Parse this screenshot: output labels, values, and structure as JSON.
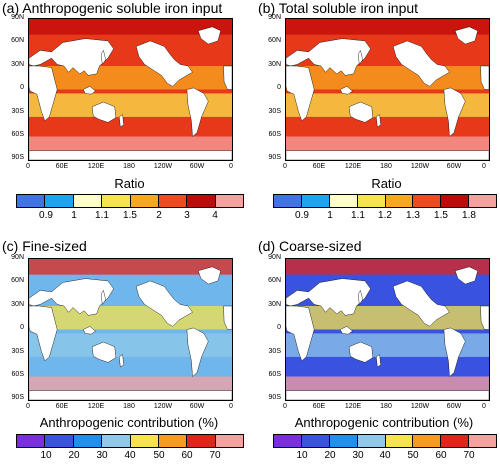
{
  "panels": [
    {
      "title": "(a) Anthropogenic soluble iron input",
      "colorbar_title": "Ratio",
      "colorbar_labels": [
        "0.9",
        "1",
        "1.1",
        "1.5",
        "2",
        "3",
        "4"
      ],
      "colors": [
        "#3f73e6",
        "#1aa6f2",
        "#ffffc8",
        "#f7e34a",
        "#f7a81e",
        "#ee4a1e",
        "#bf0a0a",
        "#f7a0a0"
      ],
      "ocean_base": "#e7391a"
    },
    {
      "title": "(b) Total soluble iron input",
      "colorbar_title": "Ratio",
      "colorbar_labels": [
        "0.9",
        "1",
        "1.1",
        "1.2",
        "1.3",
        "1.5",
        "1.8"
      ],
      "colors": [
        "#3f73e6",
        "#1aa6f2",
        "#ffffc8",
        "#f7e34a",
        "#f7a81e",
        "#ee4a1e",
        "#bf0a0a",
        "#f7a0a0"
      ],
      "ocean_base": "#e7391a"
    },
    {
      "title": "(c) Fine-sized",
      "colorbar_title": "Anthropogenic contribution (%)",
      "colorbar_labels": [
        "10",
        "20",
        "30",
        "40",
        "50",
        "60",
        "70"
      ],
      "colors": [
        "#7a2ee0",
        "#3a52e0",
        "#1e90f0",
        "#8fc8ea",
        "#f7e34a",
        "#f79a1e",
        "#e0261a",
        "#f7a0a0"
      ],
      "ocean_base": "#6fb6ec"
    },
    {
      "title": "(d) Coarse-sized",
      "colorbar_title": "Anthropogenic contribution (%)",
      "colorbar_labels": [
        "10",
        "20",
        "30",
        "40",
        "50",
        "60",
        "70"
      ],
      "colors": [
        "#7a2ee0",
        "#3a52e0",
        "#1e90f0",
        "#8fc8ea",
        "#f7e34a",
        "#f79a1e",
        "#e0261a",
        "#f7a0a0"
      ],
      "ocean_base": "#3a52e0"
    }
  ],
  "lat_labels": [
    "90N",
    "60N",
    "30N",
    "0",
    "30S",
    "60S",
    "90S"
  ],
  "lon_labels": [
    "0",
    "60E",
    "120E",
    "180",
    "120W",
    "60W",
    "0"
  ],
  "land_color": "#ffffff"
}
